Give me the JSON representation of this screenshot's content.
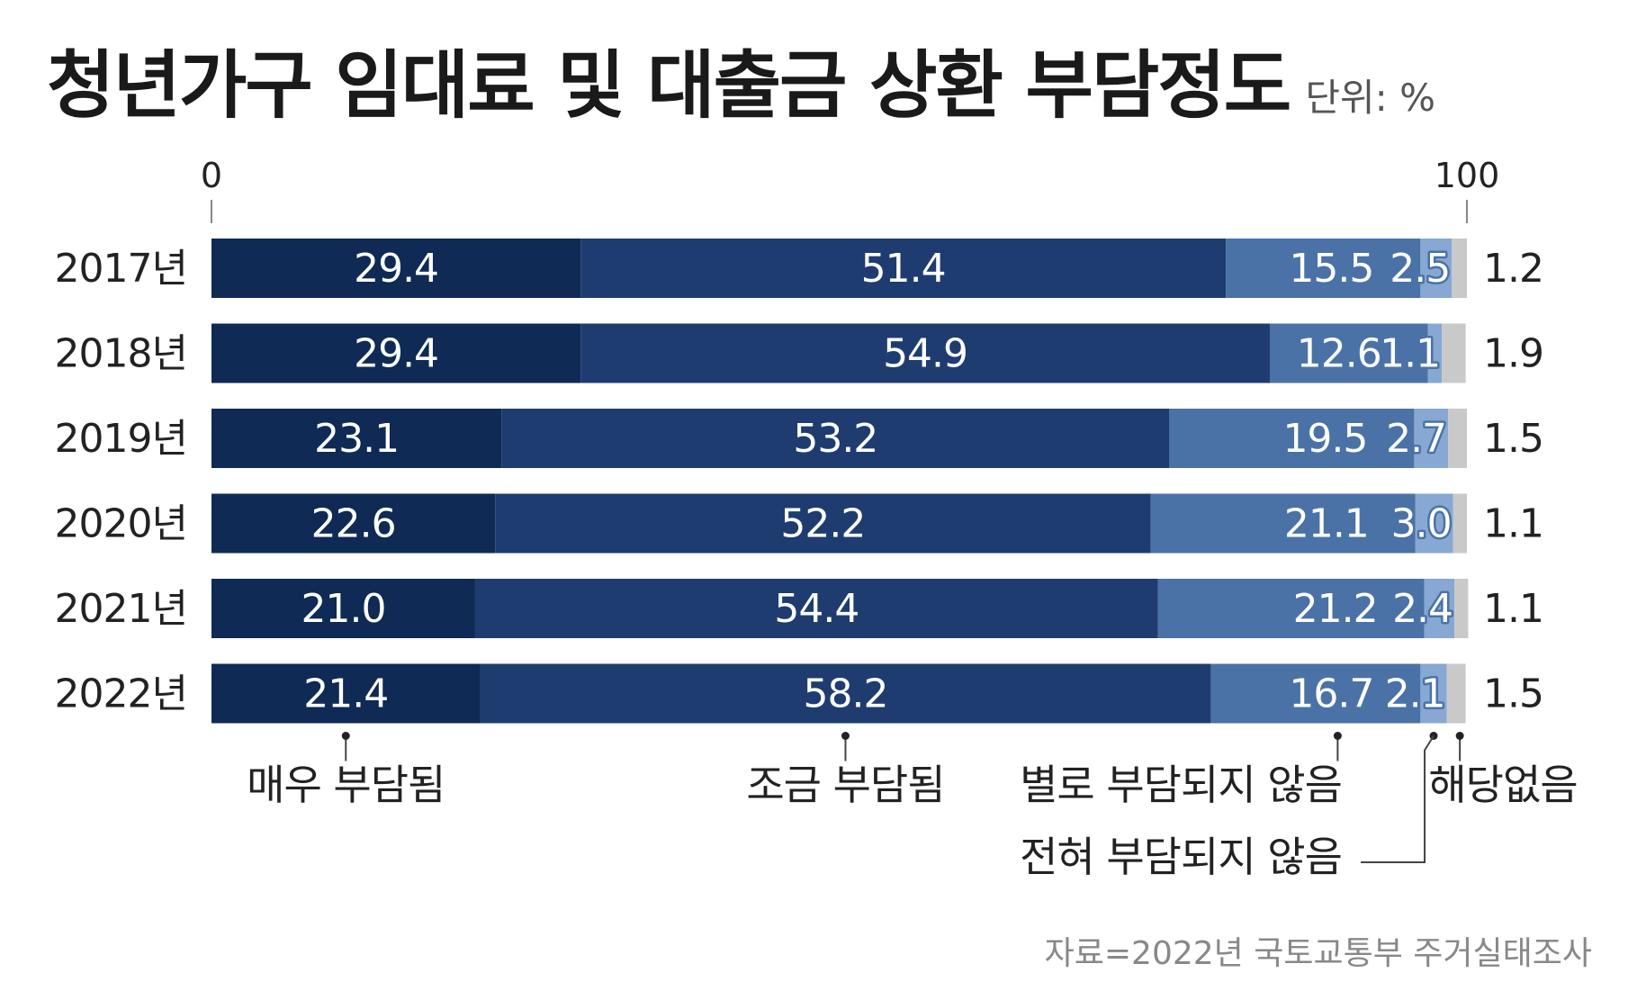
{
  "title": "청년가구 임대료 및 대출금 상환 부담정도",
  "unit": "단위: %",
  "source": "자료=2022년 국토교통부 주거실태조사",
  "colors": [
    "#0e2a55",
    "#1e3c70",
    "#4a72a6",
    "#86a8d3",
    "#c9c9c9"
  ],
  "chart_data": {
    "type": "bar",
    "orientation": "horizontal",
    "stacked": true,
    "xlim": [
      0,
      100
    ],
    "x_ticks": [
      "0",
      "100"
    ],
    "categories": [
      "2017년",
      "2018년",
      "2019년",
      "2020년",
      "2021년",
      "2022년"
    ],
    "series": [
      {
        "name": "매우 부담됨",
        "values": [
          29.4,
          29.4,
          23.1,
          22.6,
          21.0,
          21.4
        ],
        "labels": [
          "29.4",
          "29.4",
          "23.1",
          "22.6",
          "21.0",
          "21.4"
        ]
      },
      {
        "name": "조금 부담됨",
        "values": [
          51.4,
          54.9,
          53.2,
          52.2,
          54.4,
          58.2
        ],
        "labels": [
          "51.4",
          "54.9",
          "53.2",
          "52.2",
          "54.4",
          "58.2"
        ]
      },
      {
        "name": "별로 부담되지 않음",
        "values": [
          15.5,
          12.6,
          19.5,
          21.1,
          21.2,
          16.7
        ],
        "labels": [
          "15.5",
          "12.6",
          "19.5",
          "21.1",
          "21.2",
          "16.7"
        ]
      },
      {
        "name": "전혀 부담되지 않음",
        "values": [
          2.5,
          1.1,
          2.7,
          3.0,
          2.4,
          2.1
        ],
        "labels": [
          "2.5",
          "1.1",
          "2.7",
          "3.0",
          "2.4",
          "2.1"
        ]
      },
      {
        "name": "해당없음",
        "values": [
          1.2,
          1.9,
          1.5,
          1.1,
          1.1,
          1.5
        ],
        "labels": [
          "1.2",
          "1.9",
          "1.5",
          "1.1",
          "1.1",
          "1.5"
        ]
      }
    ]
  }
}
